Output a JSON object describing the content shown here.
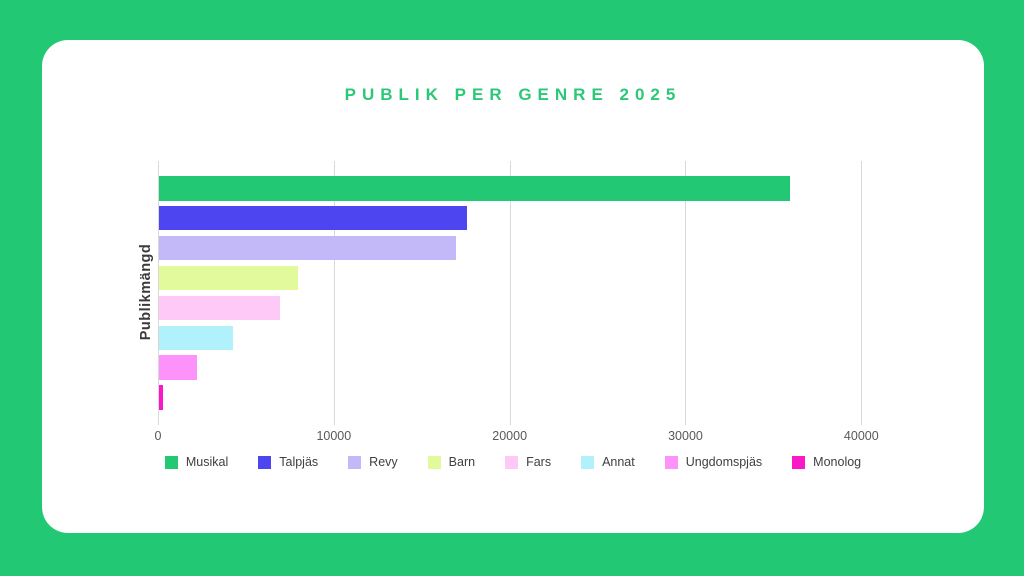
{
  "page": {
    "background_color": "#22C873",
    "card_color": "#FFFFFF",
    "accent_color": "#2BC877"
  },
  "chart_data": {
    "type": "bar",
    "orientation": "horizontal",
    "title": "PUBLIK PER GENRE 2025",
    "xlabel": "",
    "ylabel": "Publikmängd",
    "categories": [
      "Musikal",
      "Talpjäs",
      "Revy",
      "Barn",
      "Fars",
      "Annat",
      "Ungdomspjäs",
      "Monolog"
    ],
    "values": [
      35900,
      17500,
      16900,
      7900,
      6900,
      4200,
      2150,
      250
    ],
    "colors": [
      "#22C873",
      "#4D46F0",
      "#C3B9F8",
      "#E2FA9C",
      "#FEC9F6",
      "#B1F1FB",
      "#FD93FA",
      "#FA18C8"
    ],
    "xlim": [
      0,
      42200
    ],
    "xticks": [
      0,
      10000,
      20000,
      30000,
      40000
    ],
    "xtick_labels": [
      "0",
      "10000",
      "20000",
      "30000",
      "40000"
    ],
    "grid": "vertical",
    "gridline_color": "#D9D9D9",
    "tick_label_color": "#595959",
    "legend_position": "bottom",
    "legend": [
      "Musikal",
      "Talpjäs",
      "Revy",
      "Barn",
      "Fars",
      "Annat",
      "Ungdomspjäs",
      "Monolog"
    ]
  }
}
